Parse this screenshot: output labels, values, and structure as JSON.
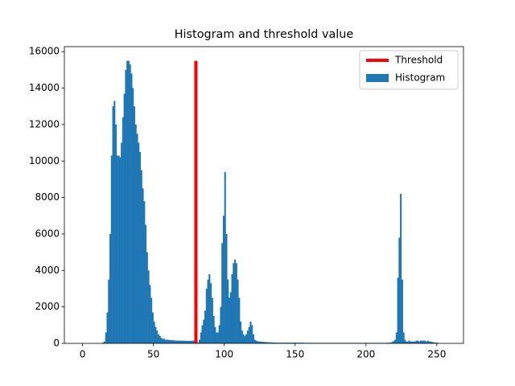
{
  "chart_data": {
    "type": "histogram",
    "title": "Histogram and threshold value",
    "bins": [
      0,
      1,
      2,
      3,
      4,
      5,
      6,
      7,
      8,
      9,
      10,
      11,
      12,
      13,
      14,
      15,
      16,
      17,
      18,
      19,
      20,
      21,
      22,
      23,
      24,
      25,
      26,
      27,
      28,
      29,
      30,
      31,
      32,
      33,
      34,
      35,
      36,
      37,
      38,
      39,
      40,
      41,
      42,
      43,
      44,
      45,
      46,
      47,
      48,
      49,
      50,
      51,
      52,
      53,
      54,
      55,
      56,
      57,
      58,
      59,
      60,
      61,
      62,
      63,
      64,
      65,
      66,
      67,
      68,
      69,
      70,
      71,
      72,
      73,
      74,
      75,
      76,
      77,
      78,
      79,
      80,
      81,
      82,
      83,
      84,
      85,
      86,
      87,
      88,
      89,
      90,
      91,
      92,
      93,
      94,
      95,
      96,
      97,
      98,
      99,
      100,
      101,
      102,
      103,
      104,
      105,
      106,
      107,
      108,
      109,
      110,
      111,
      112,
      113,
      114,
      115,
      116,
      117,
      118,
      119,
      120,
      121,
      122,
      123,
      124,
      125,
      126,
      127,
      128,
      129,
      130,
      131,
      132,
      133,
      134,
      135,
      136,
      137,
      138,
      139,
      140,
      141,
      142,
      143,
      144,
      145,
      146,
      147,
      148,
      149,
      150,
      151,
      152,
      153,
      154,
      155,
      156,
      157,
      158,
      159,
      160,
      161,
      162,
      163,
      164,
      165,
      166,
      167,
      168,
      169,
      170,
      171,
      172,
      173,
      174,
      175,
      176,
      177,
      178,
      179,
      180,
      181,
      182,
      183,
      184,
      185,
      186,
      187,
      188,
      189,
      190,
      191,
      192,
      193,
      194,
      195,
      196,
      197,
      198,
      199,
      200,
      201,
      202,
      203,
      204,
      205,
      206,
      207,
      208,
      209,
      210,
      211,
      212,
      213,
      214,
      215,
      216,
      217,
      218,
      219,
      220,
      221,
      222,
      223,
      224,
      225,
      226,
      227,
      228,
      229,
      230,
      231,
      232,
      233,
      234,
      235,
      236,
      237,
      238,
      239,
      240,
      241,
      242,
      243,
      244,
      245,
      246,
      247,
      248,
      249,
      250,
      251,
      252,
      253,
      254,
      255,
      256
    ],
    "series": [
      {
        "name": "Histogram",
        "color": "#1f77b4",
        "values": [
          0,
          0,
          0,
          0,
          0,
          0,
          0,
          0,
          0,
          0,
          0,
          0,
          0,
          0,
          50,
          100,
          600,
          1700,
          3500,
          6000,
          10300,
          13000,
          13300,
          12000,
          10300,
          10300,
          10200,
          11000,
          12400,
          13700,
          15000,
          15500,
          15500,
          15300,
          14800,
          14000,
          13000,
          12000,
          11500,
          11000,
          10500,
          9500,
          8500,
          7800,
          6500,
          5000,
          4000,
          3200,
          2500,
          1700,
          1200,
          900,
          700,
          500,
          400,
          300,
          250,
          250,
          200,
          200,
          200,
          180,
          180,
          170,
          160,
          160,
          150,
          150,
          150,
          150,
          150,
          150,
          140,
          140,
          140,
          140,
          140,
          150,
          150,
          150,
          100,
          50,
          200,
          600,
          1000,
          1300,
          1800,
          3000,
          3500,
          3800,
          3300,
          2500,
          1500,
          900,
          600,
          600,
          1000,
          2000,
          5500,
          7000,
          9400,
          6000,
          3500,
          2500,
          2800,
          3800,
          4400,
          4600,
          4400,
          3500,
          2500,
          1200,
          700,
          500,
          400,
          500,
          700,
          900,
          1200,
          1000,
          500,
          200,
          150,
          120,
          100,
          100,
          90,
          80,
          80,
          70,
          70,
          60,
          60,
          60,
          50,
          50,
          40,
          40,
          40,
          40,
          40,
          40,
          40,
          40,
          40,
          40,
          40,
          40,
          40,
          40,
          40,
          40,
          40,
          40,
          40,
          40,
          30,
          30,
          30,
          30,
          30,
          30,
          30,
          30,
          30,
          30,
          30,
          30,
          30,
          30,
          30,
          30,
          30,
          30,
          30,
          30,
          30,
          30,
          30,
          30,
          30,
          30,
          30,
          30,
          30,
          30,
          30,
          30,
          30,
          30,
          30,
          30,
          30,
          30,
          30,
          30,
          30,
          30,
          30,
          30,
          30,
          30,
          30,
          30,
          30,
          30,
          30,
          30,
          30,
          30,
          30,
          30,
          30,
          30,
          30,
          30,
          40,
          50,
          80,
          120,
          200,
          600,
          3600,
          5800,
          8200,
          3500,
          600,
          200,
          100,
          100,
          150,
          100,
          100,
          100,
          100,
          150,
          150,
          100,
          150,
          150,
          150,
          150,
          100,
          150,
          100,
          100,
          80,
          60,
          50,
          40,
          30,
          0,
          0,
          0,
          0,
          0
        ]
      },
      {
        "name": "Threshold",
        "type": "line",
        "color": "#ff0000",
        "x": [
          80,
          80
        ],
        "values": [
          0,
          15500
        ]
      }
    ],
    "xlim": [
      -12.8,
      268.8
    ],
    "xticks": [
      0,
      50,
      100,
      150,
      200,
      250
    ],
    "ylim": [
      0,
      16275
    ],
    "yticks": [
      0,
      2000,
      4000,
      6000,
      8000,
      10000,
      12000,
      14000,
      16000
    ],
    "legend": "upper right"
  }
}
